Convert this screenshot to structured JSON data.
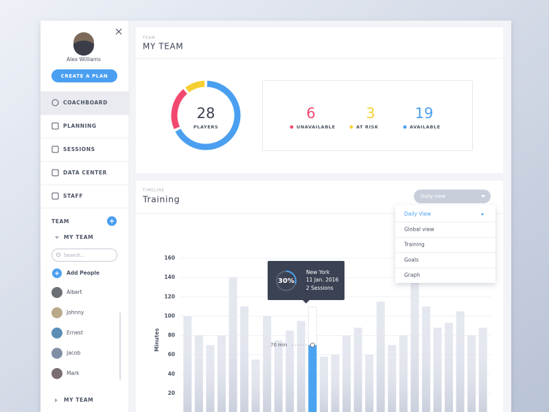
{
  "sidebar": {
    "user_name": "Alex Williams",
    "create_button": "CREATE A PLAN",
    "nav": [
      "COACHBOARD",
      "PLANNING",
      "SESSIONS",
      "DATA CENTER",
      "STAFF"
    ],
    "team_label": "TEAM",
    "my_team": "MY TEAM",
    "search_placeholder": "Search...",
    "add_people": "Add People",
    "people": [
      "Albert",
      "Johnny",
      "Ernest",
      "Jacob",
      "Mark"
    ],
    "bottom_team": "MY TEAM"
  },
  "team_panel": {
    "eyebrow": "TEAM",
    "title": "MY TEAM",
    "total": 28,
    "total_label": "PLAYERS",
    "stats": [
      {
        "value": 6,
        "label": "UNAVAILABLE",
        "color": "#f2486f"
      },
      {
        "value": 3,
        "label": "AT RISK",
        "color": "#f6cf33"
      },
      {
        "value": 19,
        "label": "AVAILABLE",
        "color": "#4a9ff0"
      }
    ]
  },
  "timeline": {
    "eyebrow": "TIMELINE",
    "title": "Training",
    "view_select": "Daily view",
    "menu": [
      "Daily View",
      "Global view",
      "Training",
      "Goals",
      "Graph"
    ],
    "tooltip": {
      "percent": 30,
      "percent_label": "30%",
      "city": "New York",
      "date": "11 Jan. 2016",
      "sessions": "2 Sessions"
    }
  },
  "chart_data": {
    "type": "bar",
    "y_label": "Minutes",
    "categories": [
      null,
      null,
      null,
      null,
      null,
      null,
      null,
      null,
      null,
      null,
      null,
      null,
      null,
      null,
      null,
      null,
      null,
      null,
      null,
      null,
      null,
      null,
      null,
      null,
      null,
      null,
      null
    ],
    "values": [
      100,
      80,
      70,
      80,
      140,
      110,
      55,
      100,
      75,
      85,
      95,
      70,
      58,
      60,
      80,
      88,
      60,
      115,
      70,
      80,
      135,
      110,
      88,
      93,
      105,
      80,
      88
    ],
    "color": "#e4e7ef",
    "highlighted": 11,
    "highlight_color": "#4aa3f0",
    "highlight_label": "70 min",
    "ylim": [
      0,
      160
    ],
    "yticks": [
      20,
      40,
      60,
      80,
      100,
      120,
      140,
      160
    ],
    "grid": true
  }
}
